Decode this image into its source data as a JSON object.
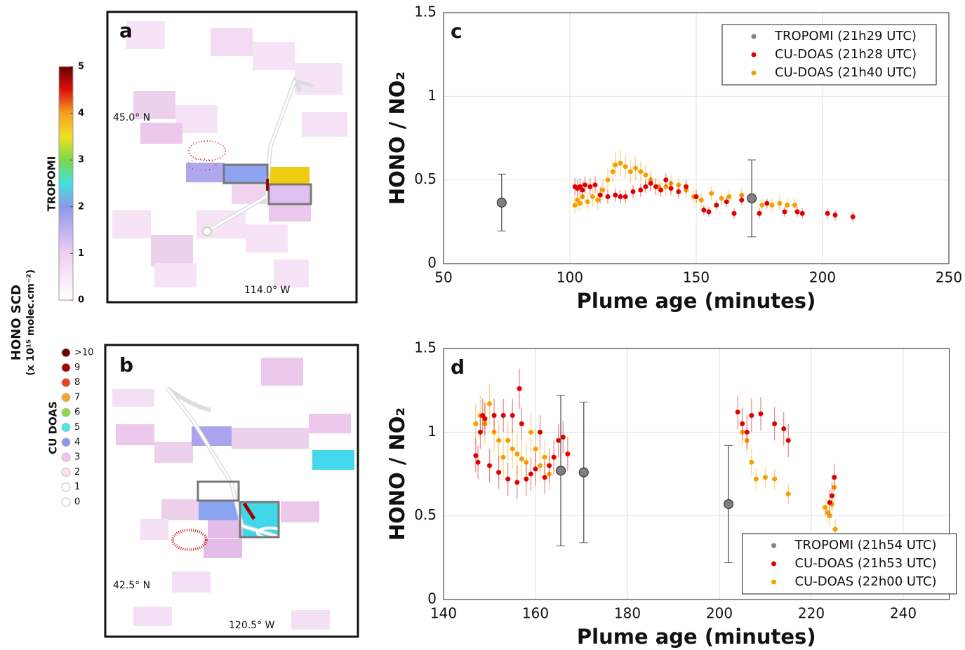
{
  "maps": {
    "a": {
      "label": "a",
      "lat": "45.0° N",
      "lon": "114.0° W"
    },
    "b": {
      "label": "b",
      "lat": "42.5° N",
      "lon": "120.5° W"
    },
    "title": "HONO SCD",
    "unit": "(x 10¹⁵ molec.cm⁻²)",
    "colorbar": {
      "title": "TROPOMI",
      "ticks": [
        0,
        1,
        2,
        3,
        4,
        5
      ],
      "lim": [
        0,
        5
      ]
    },
    "cu_legend": {
      "title": "CU DOAS",
      "labels": [
        ">10",
        "9",
        "8",
        "7",
        "6",
        "5",
        "4",
        "3",
        "2",
        "1",
        "0"
      ],
      "colors": [
        "#6e0000",
        "#a80000",
        "#ee4020",
        "#f0a828",
        "#88dd44",
        "#44e6e6",
        "#8a98e6",
        "#f0c4f0",
        "#f8e2f8",
        "#ffffff",
        "#ffffff"
      ]
    }
  },
  "chart_data": [
    {
      "type": "scatter",
      "panel_label": "c",
      "xlabel": "Plume age (minutes)",
      "ylabel": "HONO / NO₂",
      "xlim": [
        50,
        250
      ],
      "xticks": [
        50,
        100,
        150,
        200,
        250
      ],
      "ylim": [
        0,
        1.5
      ],
      "yticks": [
        0,
        0.5,
        1,
        1.5
      ],
      "grid": true,
      "legend": "top-right",
      "series": [
        {
          "name": "TROPOMI (21h29 UTC)",
          "color": "#808080",
          "x": [
            73,
            172
          ],
          "values": [
            0.365,
            0.39
          ],
          "errors": [
            0.17,
            0.23
          ]
        },
        {
          "name": "CU-DOAS (21h28 UTC)",
          "color": "#e00000",
          "x": [
            102,
            103,
            104,
            105,
            106,
            108,
            110,
            112,
            115,
            118,
            120,
            122,
            125,
            128,
            130,
            132,
            134,
            136,
            138,
            140,
            143,
            146,
            150,
            153,
            155,
            158,
            162,
            165,
            168,
            172,
            175,
            178,
            185,
            190,
            192,
            202,
            205,
            212
          ],
          "values": [
            0.46,
            0.45,
            0.46,
            0.44,
            0.47,
            0.46,
            0.47,
            0.41,
            0.4,
            0.41,
            0.4,
            0.4,
            0.43,
            0.44,
            0.46,
            0.48,
            0.46,
            0.44,
            0.5,
            0.45,
            0.43,
            0.46,
            0.4,
            0.32,
            0.31,
            0.35,
            0.37,
            0.3,
            0.38,
            0.38,
            0.3,
            0.36,
            0.31,
            0.31,
            0.3,
            0.3,
            0.29,
            0.28
          ],
          "errors": [
            0.05,
            0.05,
            0.05,
            0.05,
            0.05,
            0.05,
            0.05,
            0.05,
            0.04,
            0.04,
            0.04,
            0.04,
            0.04,
            0.04,
            0.04,
            0.05,
            0.05,
            0.04,
            0.04,
            0.04,
            0.04,
            0.04,
            0.04,
            0.03,
            0.03,
            0.03,
            0.03,
            0.03,
            0.03,
            0.03,
            0.03,
            0.03,
            0.03,
            0.03,
            0.03,
            0.03,
            0.03,
            0.03
          ]
        },
        {
          "name": "CU-DOAS (21h40 UTC)",
          "color": "#f5a000",
          "x": [
            102,
            103,
            104,
            105,
            107,
            109,
            111,
            113,
            115,
            117,
            118,
            120,
            122,
            124,
            126,
            128,
            130,
            132,
            135,
            138,
            140,
            143,
            146,
            149,
            152,
            156,
            160,
            163,
            168,
            172,
            176,
            180,
            183,
            186,
            189
          ],
          "values": [
            0.35,
            0.38,
            0.36,
            0.4,
            0.37,
            0.4,
            0.38,
            0.44,
            0.5,
            0.55,
            0.59,
            0.6,
            0.58,
            0.55,
            0.57,
            0.55,
            0.53,
            0.5,
            0.46,
            0.46,
            0.48,
            0.47,
            0.44,
            0.4,
            0.38,
            0.42,
            0.39,
            0.4,
            0.41,
            0.38,
            0.35,
            0.35,
            0.36,
            0.35,
            0.35
          ],
          "errors": [
            0.05,
            0.06,
            0.05,
            0.06,
            0.05,
            0.06,
            0.06,
            0.06,
            0.07,
            0.07,
            0.08,
            0.08,
            0.07,
            0.07,
            0.07,
            0.06,
            0.06,
            0.06,
            0.05,
            0.05,
            0.05,
            0.05,
            0.05,
            0.04,
            0.04,
            0.04,
            0.04,
            0.04,
            0.04,
            0.04,
            0.04,
            0.04,
            0.04,
            0.04,
            0.04
          ]
        }
      ]
    },
    {
      "type": "scatter",
      "panel_label": "d",
      "xlabel": "Plume age (minutes)",
      "ylabel": "HONO / NO₂",
      "xlim": [
        140,
        250
      ],
      "xticks": [
        140,
        160,
        180,
        200,
        220,
        240
      ],
      "ylim": [
        0,
        1.5
      ],
      "yticks": [
        0,
        0.5,
        1,
        1.5
      ],
      "grid": true,
      "legend": "bottom-right",
      "series": [
        {
          "name": "TROPOMI (21h54 UTC)",
          "color": "#808080",
          "x": [
            165.5,
            170.5,
            202
          ],
          "values": [
            0.77,
            0.76,
            0.57
          ],
          "errors": [
            0.45,
            0.42,
            0.35
          ]
        },
        {
          "name": "CU-DOAS (21h53 UTC)",
          "color": "#e00000",
          "x": [
            147,
            147.5,
            148,
            148.5,
            149,
            150,
            151,
            152,
            153,
            154,
            155,
            156,
            156.5,
            157,
            158,
            159,
            160,
            161,
            162,
            163,
            164,
            165,
            166,
            167,
            204,
            205,
            206,
            207,
            209,
            212,
            214,
            215,
            224,
            224.5,
            225
          ],
          "values": [
            0.86,
            0.82,
            1.0,
            1.1,
            1.08,
            0.8,
            1.1,
            0.76,
            1.1,
            0.72,
            1.1,
            0.7,
            1.26,
            1.05,
            0.72,
            0.75,
            0.78,
            1.0,
            0.73,
            0.8,
            0.85,
            0.95,
            0.97,
            0.87,
            1.12,
            1.05,
            1.0,
            1.1,
            1.11,
            1.05,
            1.02,
            0.95,
            0.58,
            0.62,
            0.73
          ],
          "errors": [
            0.1,
            0.1,
            0.1,
            0.1,
            0.1,
            0.1,
            0.1,
            0.1,
            0.1,
            0.1,
            0.1,
            0.1,
            0.12,
            0.1,
            0.1,
            0.1,
            0.1,
            0.1,
            0.1,
            0.1,
            0.1,
            0.1,
            0.1,
            0.1,
            0.1,
            0.1,
            0.1,
            0.1,
            0.1,
            0.1,
            0.1,
            0.1,
            0.08,
            0.08,
            0.08
          ]
        },
        {
          "name": "CU-DOAS (22h00 UTC)",
          "color": "#f5a000",
          "x": [
            147,
            148,
            149,
            150,
            151,
            152,
            153,
            154,
            155,
            156,
            157,
            158,
            159,
            160,
            161,
            162,
            163,
            205,
            206,
            207,
            208,
            210,
            212,
            215,
            223,
            223.5,
            224,
            224.5,
            225,
            225.2
          ],
          "values": [
            1.05,
            1.1,
            1.05,
            1.17,
            1.0,
            0.95,
            0.85,
            0.95,
            0.9,
            0.87,
            0.84,
            0.82,
            1.0,
            0.9,
            0.8,
            0.85,
            0.75,
            1.0,
            0.95,
            0.82,
            0.72,
            0.73,
            0.72,
            0.63,
            0.55,
            0.52,
            0.5,
            0.57,
            0.67,
            0.42
          ],
          "errors": [
            0.12,
            0.12,
            0.12,
            0.12,
            0.12,
            0.12,
            0.12,
            0.12,
            0.12,
            0.12,
            0.12,
            0.12,
            0.12,
            0.12,
            0.1,
            0.1,
            0.1,
            0.08,
            0.08,
            0.08,
            0.06,
            0.06,
            0.06,
            0.06,
            0.06,
            0.06,
            0.06,
            0.06,
            0.06,
            0.06
          ]
        }
      ]
    }
  ]
}
